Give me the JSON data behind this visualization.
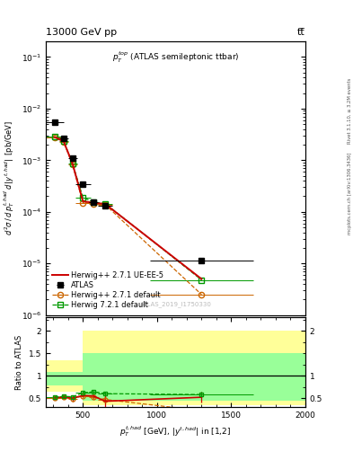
{
  "title_top": "13000 GeV pp",
  "title_right": "tt̅",
  "inner_title": "$p_T^{top}$ (ATLAS semileptonic ttbar)",
  "watermark": "ATLAS_2019_I1750330",
  "right_label_top": "Rivet 3.1.10, ≥ 3.2M events",
  "right_label_bot": "mcplots.cern.ch [arXiv:1306.3436]",
  "ylabel_main": "$d^2\\sigma\\,/\\,d\\,p_T^{t,had}\\,d\\,|y^{t,had}|\\,$ [pb/GeV]",
  "ylabel_ratio": "Ratio to ATLAS",
  "xlabel": "$p_T^{t,had}$ [GeV], $|y^{t,had}|$ in [1,2]",
  "ylim_main": [
    1e-06,
    0.2
  ],
  "ylim_ratio": [
    0.3,
    2.3
  ],
  "xlim": [
    250,
    2000
  ],
  "atlas_x": [
    310,
    370,
    430,
    500,
    570,
    650,
    1300
  ],
  "atlas_y": [
    0.0055,
    0.0027,
    0.0011,
    0.00035,
    0.000155,
    0.00013,
    1.15e-05
  ],
  "atlas_xerr_lo": [
    60,
    30,
    30,
    50,
    30,
    50,
    350
  ],
  "atlas_xerr_hi": [
    60,
    30,
    30,
    50,
    30,
    50,
    350
  ],
  "hw271_x": [
    310,
    370,
    430,
    500,
    570,
    650,
    1300
  ],
  "hw271_y": [
    0.0028,
    0.0023,
    0.00082,
    0.00015,
    0.000145,
    0.000138,
    2.5e-06
  ],
  "hw271_xerr_lo": [
    60,
    30,
    30,
    50,
    30,
    50,
    350
  ],
  "hw271_xerr_hi": [
    60,
    30,
    30,
    50,
    30,
    50,
    350
  ],
  "hw271ue_x": [
    310,
    370,
    430,
    500,
    570,
    650,
    1300
  ],
  "hw271ue_y": [
    0.0028,
    0.0023,
    0.00085,
    0.00016,
    0.00015,
    0.000142,
    5e-06
  ],
  "hw721_x": [
    310,
    370,
    430,
    500,
    570,
    650,
    1300
  ],
  "hw721_y": [
    0.00285,
    0.00235,
    0.00085,
    0.00019,
    0.000155,
    0.000145,
    4.8e-06
  ],
  "hw721_xerr_lo": [
    60,
    30,
    30,
    50,
    30,
    50,
    350
  ],
  "hw721_xerr_hi": [
    60,
    30,
    30,
    50,
    30,
    50,
    350
  ],
  "ratio_hw271_x": [
    310,
    370,
    430,
    500,
    570,
    650,
    1300
  ],
  "ratio_hw271_y": [
    0.51,
    0.52,
    0.48,
    0.55,
    0.52,
    0.47,
    0.22
  ],
  "ratio_hw271_yerr": [
    0.03,
    0.03,
    0.03,
    0.03,
    0.03,
    0.04,
    0.05
  ],
  "ratio_hw271ue_x": [
    310,
    370,
    430,
    500,
    570,
    650,
    1300
  ],
  "ratio_hw271ue_y": [
    0.51,
    0.52,
    0.5,
    0.56,
    0.55,
    0.43,
    0.52
  ],
  "ratio_hw271ue_yerr": [
    0.04,
    0.04,
    0.07,
    0.04,
    0.04,
    0.15,
    0.12
  ],
  "ratio_hw721_x": [
    310,
    370,
    430,
    500,
    570,
    650,
    1300
  ],
  "ratio_hw721_y": [
    0.52,
    0.54,
    0.53,
    0.62,
    0.64,
    0.6,
    0.58
  ],
  "ratio_hw721_yerr": [
    0.03,
    0.03,
    0.04,
    0.04,
    0.03,
    0.04,
    0.06
  ],
  "band_yellow_edges": [
    250,
    500,
    700,
    2000
  ],
  "band_yellow_lo": [
    0.65,
    0.35,
    0.35
  ],
  "band_yellow_hi": [
    1.35,
    2.0,
    2.0
  ],
  "band_green_edges": [
    250,
    500,
    700,
    2000
  ],
  "band_green_lo": [
    0.78,
    0.45,
    0.45
  ],
  "band_green_hi": [
    1.08,
    1.5,
    1.5
  ],
  "color_atlas": "#000000",
  "color_hw271": "#cc6600",
  "color_hw271ue": "#cc0000",
  "color_hw721": "#009900",
  "color_yellow": "#ffff99",
  "color_green": "#99ff99"
}
